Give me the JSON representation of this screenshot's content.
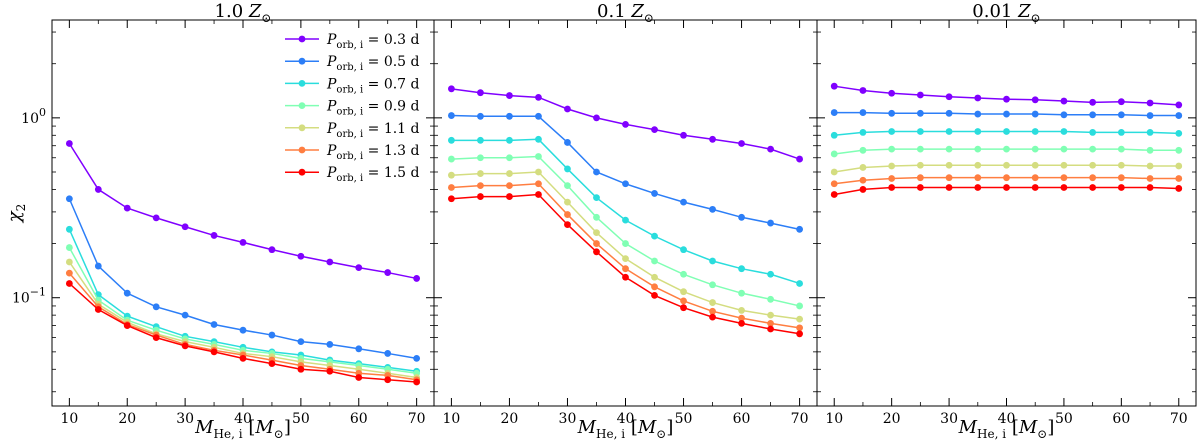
{
  "chart_data": {
    "type": "line",
    "layout": "three horizontal panels sharing a log-scale y axis",
    "x": [
      10,
      15,
      20,
      25,
      30,
      35,
      40,
      45,
      50,
      55,
      60,
      65,
      70
    ],
    "xlim": [
      7,
      73
    ],
    "xticks": [
      10,
      20,
      30,
      40,
      50,
      60,
      70
    ],
    "xlabel": {
      "base": "M",
      "sub": "He, i",
      "unit_open": " [",
      "unit_base": "M",
      "unit_sub": "⊙",
      "unit_close": "]"
    },
    "ylabel": {
      "base": "χ",
      "sub": "2"
    },
    "yscale": "log",
    "ylim": [
      0.025,
      3.5
    ],
    "yticks": [
      {
        "value": 0.1,
        "base": "10",
        "exp": "−1"
      },
      {
        "value": 1.0,
        "base": "10",
        "exp": "0"
      }
    ],
    "series_meta": [
      {
        "name": "0.3 d",
        "color": "#8000ff"
      },
      {
        "name": "0.5 d",
        "color": "#2c7ef7"
      },
      {
        "name": "0.7 d",
        "color": "#2adddd"
      },
      {
        "name": "0.9 d",
        "color": "#80ffb4"
      },
      {
        "name": "1.1 d",
        "color": "#d4dd80"
      },
      {
        "name": "1.3 d",
        "color": "#ff7e41"
      },
      {
        "name": "1.5 d",
        "color": "#ff0000"
      }
    ],
    "legend": {
      "position": "upper-right of first panel",
      "label_base": "P",
      "label_sub": "orb, i",
      "label_eq": " = ",
      "entries": [
        "0.3 d",
        "0.5 d",
        "0.7 d",
        "0.9 d",
        "1.1 d",
        "1.3 d",
        "1.5 d"
      ]
    },
    "panels": [
      {
        "title_value": "1.0",
        "title_symbol": "Z",
        "title_sub": "⊙",
        "series": [
          {
            "name": "0.3 d",
            "values": [
              0.72,
              0.4,
              0.315,
              0.278,
              0.248,
              0.222,
              0.203,
              0.185,
              0.17,
              0.158,
              0.147,
              0.138,
              0.128
            ]
          },
          {
            "name": "0.5 d",
            "values": [
              0.355,
              0.15,
              0.106,
              0.089,
              0.08,
              0.071,
              0.066,
              0.062,
              0.057,
              0.055,
              0.052,
              0.049,
              0.046
            ]
          },
          {
            "name": "0.7 d",
            "values": [
              0.24,
              0.104,
              0.079,
              0.069,
              0.061,
              0.057,
              0.053,
              0.05,
              0.048,
              0.045,
              0.043,
              0.041,
              0.039
            ]
          },
          {
            "name": "0.9 d",
            "values": [
              0.19,
              0.097,
              0.075,
              0.066,
              0.059,
              0.055,
              0.051,
              0.049,
              0.046,
              0.044,
              0.042,
              0.04,
              0.038
            ]
          },
          {
            "name": "1.1 d",
            "values": [
              0.158,
              0.092,
              0.073,
              0.063,
              0.057,
              0.053,
              0.049,
              0.047,
              0.044,
              0.042,
              0.04,
              0.038,
              0.036
            ]
          },
          {
            "name": "1.3 d",
            "values": [
              0.137,
              0.089,
              0.071,
              0.062,
              0.055,
              0.051,
              0.048,
              0.045,
              0.042,
              0.04,
              0.038,
              0.037,
              0.035
            ]
          },
          {
            "name": "1.5 d",
            "values": [
              0.12,
              0.086,
              0.07,
              0.06,
              0.054,
              0.05,
              0.046,
              0.043,
              0.04,
              0.039,
              0.036,
              0.035,
              0.034
            ]
          }
        ]
      },
      {
        "title_value": "0.1",
        "title_symbol": "Z",
        "title_sub": "⊙",
        "series": [
          {
            "name": "0.3 d",
            "values": [
              1.45,
              1.38,
              1.33,
              1.3,
              1.12,
              1.0,
              0.92,
              0.86,
              0.8,
              0.76,
              0.72,
              0.67,
              0.59
            ]
          },
          {
            "name": "0.5 d",
            "values": [
              1.03,
              1.02,
              1.02,
              1.02,
              0.73,
              0.5,
              0.43,
              0.38,
              0.34,
              0.31,
              0.28,
              0.26,
              0.24
            ]
          },
          {
            "name": "0.7 d",
            "values": [
              0.75,
              0.75,
              0.75,
              0.76,
              0.52,
              0.36,
              0.27,
              0.22,
              0.185,
              0.16,
              0.145,
              0.135,
              0.12
            ]
          },
          {
            "name": "0.9 d",
            "values": [
              0.59,
              0.6,
              0.6,
              0.61,
              0.42,
              0.28,
              0.2,
              0.16,
              0.135,
              0.118,
              0.106,
              0.098,
              0.09
            ]
          },
          {
            "name": "1.1 d",
            "values": [
              0.48,
              0.49,
              0.49,
              0.5,
              0.34,
              0.23,
              0.165,
              0.13,
              0.108,
              0.094,
              0.085,
              0.08,
              0.076
            ]
          },
          {
            "name": "1.3 d",
            "values": [
              0.41,
              0.42,
              0.42,
              0.43,
              0.29,
              0.2,
              0.145,
              0.115,
              0.096,
              0.084,
              0.077,
              0.072,
              0.068
            ]
          },
          {
            "name": "1.5 d",
            "values": [
              0.355,
              0.365,
              0.365,
              0.375,
              0.255,
              0.18,
              0.13,
              0.103,
              0.088,
              0.078,
              0.072,
              0.067,
              0.063
            ]
          }
        ]
      },
      {
        "title_value": "0.01",
        "title_symbol": "Z",
        "title_sub": "⊙",
        "series": [
          {
            "name": "0.3 d",
            "values": [
              1.5,
              1.42,
              1.37,
              1.34,
              1.31,
              1.29,
              1.27,
              1.26,
              1.24,
              1.22,
              1.23,
              1.21,
              1.18
            ]
          },
          {
            "name": "0.5 d",
            "values": [
              1.07,
              1.07,
              1.06,
              1.06,
              1.06,
              1.05,
              1.05,
              1.05,
              1.04,
              1.04,
              1.04,
              1.03,
              1.03
            ]
          },
          {
            "name": "0.7 d",
            "values": [
              0.8,
              0.83,
              0.84,
              0.84,
              0.84,
              0.84,
              0.84,
              0.84,
              0.84,
              0.83,
              0.83,
              0.83,
              0.82
            ]
          },
          {
            "name": "0.9 d",
            "values": [
              0.63,
              0.66,
              0.67,
              0.67,
              0.67,
              0.67,
              0.67,
              0.67,
              0.67,
              0.67,
              0.67,
              0.66,
              0.66
            ]
          },
          {
            "name": "1.1 d",
            "values": [
              0.5,
              0.53,
              0.54,
              0.545,
              0.545,
              0.545,
              0.545,
              0.545,
              0.545,
              0.545,
              0.545,
              0.54,
              0.54
            ]
          },
          {
            "name": "1.3 d",
            "values": [
              0.43,
              0.45,
              0.46,
              0.465,
              0.465,
              0.465,
              0.465,
              0.465,
              0.465,
              0.465,
              0.465,
              0.46,
              0.46
            ]
          },
          {
            "name": "1.5 d",
            "values": [
              0.375,
              0.4,
              0.41,
              0.41,
              0.41,
              0.41,
              0.41,
              0.41,
              0.41,
              0.41,
              0.41,
              0.41,
              0.405
            ]
          }
        ]
      }
    ]
  }
}
